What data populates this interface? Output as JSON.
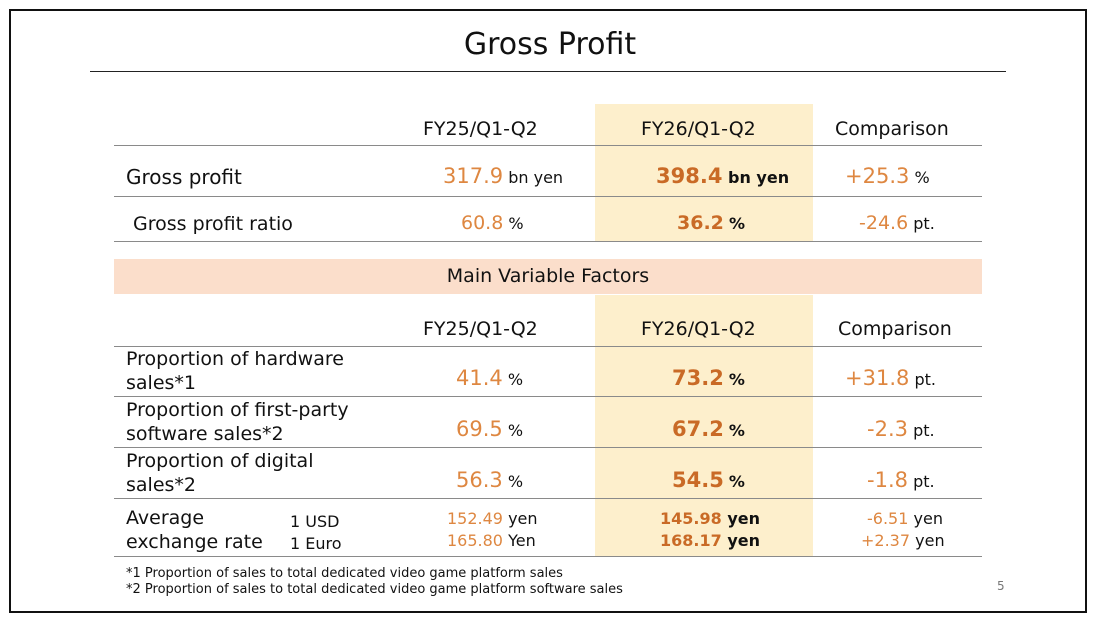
{
  "title": "Gross Profit",
  "columns": {
    "fy25": "FY25/Q1-Q2",
    "fy26": "FY26/Q1-Q2",
    "comparison": "Comparison"
  },
  "summary": [
    {
      "label": "Gross profit",
      "fy25": "317.9",
      "fy25_unit": "bn yen",
      "fy26": "398.4",
      "fy26_unit": "bn yen",
      "cmp": "+25.3",
      "cmp_unit": "%"
    },
    {
      "label": "Gross profit ratio",
      "fy25": "60.8",
      "fy25_unit": "%",
      "fy26": "36.2",
      "fy26_unit": "%",
      "cmp": "-24.6",
      "cmp_unit": "pt."
    }
  ],
  "factors_title": "Main Variable Factors",
  "factors": [
    {
      "label_line1": "Proportion of hardware",
      "label_line2": "sales*1",
      "fy25": "41.4",
      "fy25_unit": "%",
      "fy26": "73.2",
      "fy26_unit": "%",
      "cmp": "+31.8",
      "cmp_unit": "pt."
    },
    {
      "label_line1": "Proportion of first-party",
      "label_line2": "software sales*2",
      "fy25": "69.5",
      "fy25_unit": "%",
      "fy26": "67.2",
      "fy26_unit": "%",
      "cmp": "-2.3",
      "cmp_unit": "pt."
    },
    {
      "label_line1": "Proportion of digital",
      "label_line2": "sales*2",
      "fy25": "56.3",
      "fy25_unit": "%",
      "fy26": "54.5",
      "fy26_unit": "%",
      "cmp": "-1.8",
      "cmp_unit": "pt."
    }
  ],
  "exchange": {
    "label_line1": "Average",
    "label_line2": "exchange rate",
    "rows": [
      {
        "currency": "1 USD",
        "fy25": "152.49",
        "fy25_unit": "yen",
        "fy26": "145.98",
        "fy26_unit": "yen",
        "cmp": "-6.51",
        "cmp_unit": "yen"
      },
      {
        "currency": "1 Euro",
        "fy25": "165.80",
        "fy25_unit": "Yen",
        "fy26": "168.17",
        "fy26_unit": "yen",
        "cmp": "+2.37",
        "cmp_unit": "yen"
      }
    ]
  },
  "footnotes": [
    "*1 Proportion of sales to total dedicated video game platform sales",
    "*2 Proportion of sales to total dedicated video game platform software sales"
  ],
  "page_number": "5",
  "colors": {
    "value_orange": "#de8741",
    "highlight": "#fdefcc",
    "band": "#fbdecb"
  }
}
